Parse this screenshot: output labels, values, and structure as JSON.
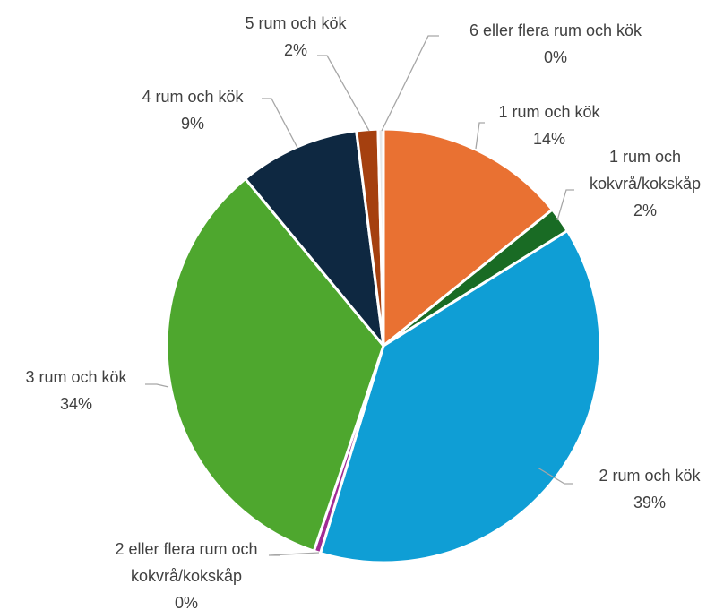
{
  "chart_data": {
    "type": "pie",
    "categories": [
      "1 rum och kök",
      "1 rum och kokvrå/kokskåp",
      "2 rum och kök",
      "2 eller flera rum och kokvrå/kokskåp",
      "3 rum och kök",
      "4 rum och kök",
      "5 rum och kök",
      "6 eller flera rum och kök"
    ],
    "values": [
      14.2,
      1.9,
      38.6,
      0.5,
      33.8,
      9.0,
      1.6,
      0.4
    ],
    "value_labels": [
      "14%",
      "2%",
      "39%",
      "0%",
      "34%",
      "9%",
      "2%",
      "0%"
    ],
    "colors": [
      "#e97132",
      "#196b24",
      "#0f9ed5",
      "#a02b93",
      "#4ea72e",
      "#0e2841",
      "#a5400f",
      "#e8e8e8"
    ]
  }
}
